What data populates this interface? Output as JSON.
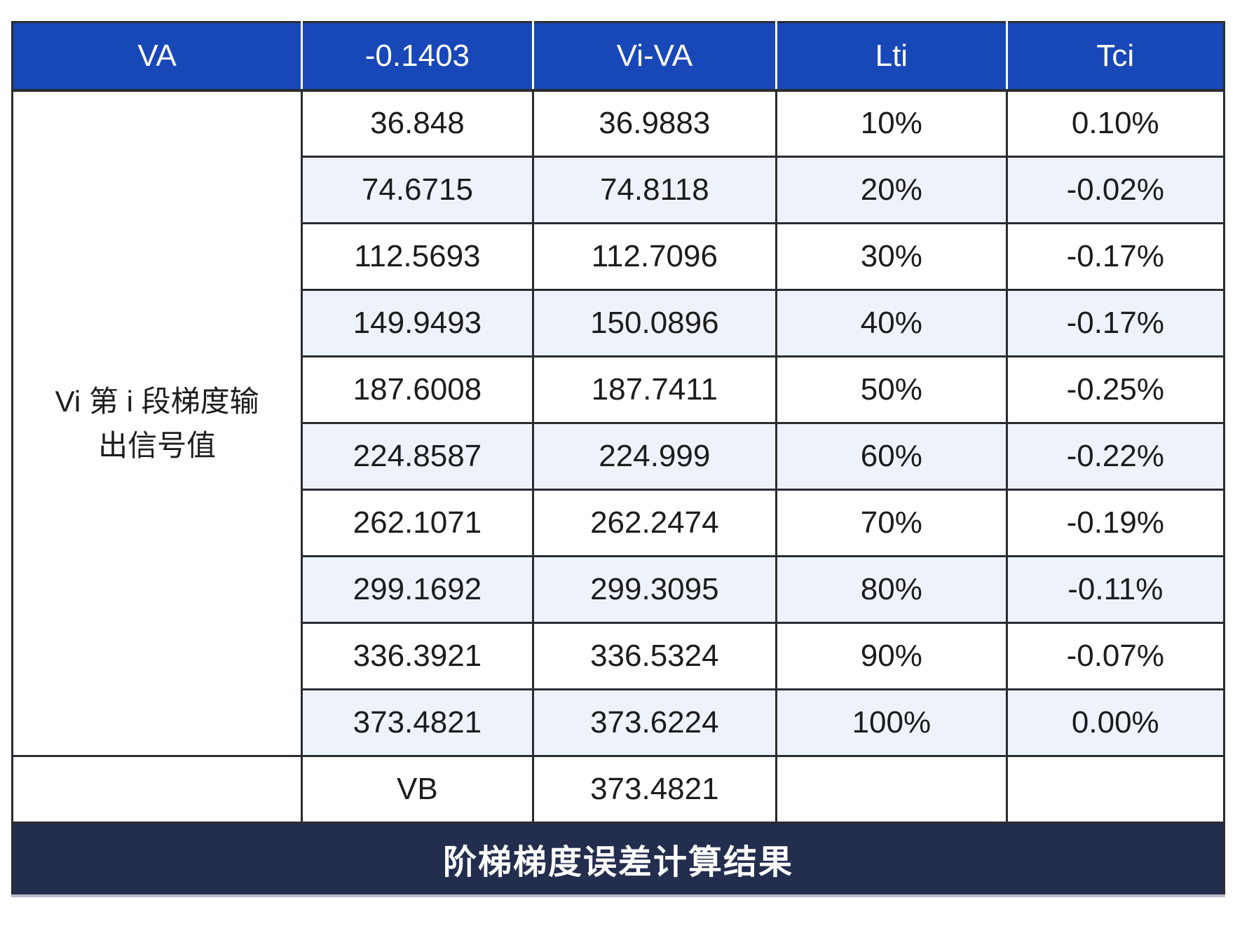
{
  "chart_data": {
    "type": "table",
    "title": "阶梯梯度误差计算结果",
    "columns": [
      "VA",
      "-0.1403",
      "Vi-VA",
      "Lti",
      "Tci"
    ],
    "row_group_label": "Vi 第 i 段梯度输出信号值",
    "row_group_label_line1": "Vi 第 i 段梯度输",
    "row_group_label_line2": "出信号值",
    "rows": [
      [
        "36.848",
        "36.9883",
        "10%",
        "0.10%"
      ],
      [
        "74.6715",
        "74.8118",
        "20%",
        "-0.02%"
      ],
      [
        "112.5693",
        "112.7096",
        "30%",
        "-0.17%"
      ],
      [
        "149.9493",
        "150.0896",
        "40%",
        "-0.17%"
      ],
      [
        "187.6008",
        "187.7411",
        "50%",
        "-0.25%"
      ],
      [
        "224.8587",
        "224.999",
        "60%",
        "-0.22%"
      ],
      [
        "262.1071",
        "262.2474",
        "70%",
        "-0.19%"
      ],
      [
        "299.1692",
        "299.3095",
        "80%",
        "-0.11%"
      ],
      [
        "336.3921",
        "336.5324",
        "90%",
        "-0.07%"
      ],
      [
        "373.4821",
        "373.6224",
        "100%",
        "0.00%"
      ]
    ],
    "vb_row": [
      "",
      "VB",
      "373.4821",
      "",
      ""
    ],
    "layout": {
      "stripe_rows": [
        2,
        4,
        6,
        8,
        10
      ],
      "header_bg": "#1848b8",
      "stripe_bg": "#eef3fb",
      "caption_bg": "#232e4e",
      "border_color": "#2b2c31",
      "header_text_color": "#ffffff",
      "body_text_color": "#1c1c1e"
    }
  }
}
